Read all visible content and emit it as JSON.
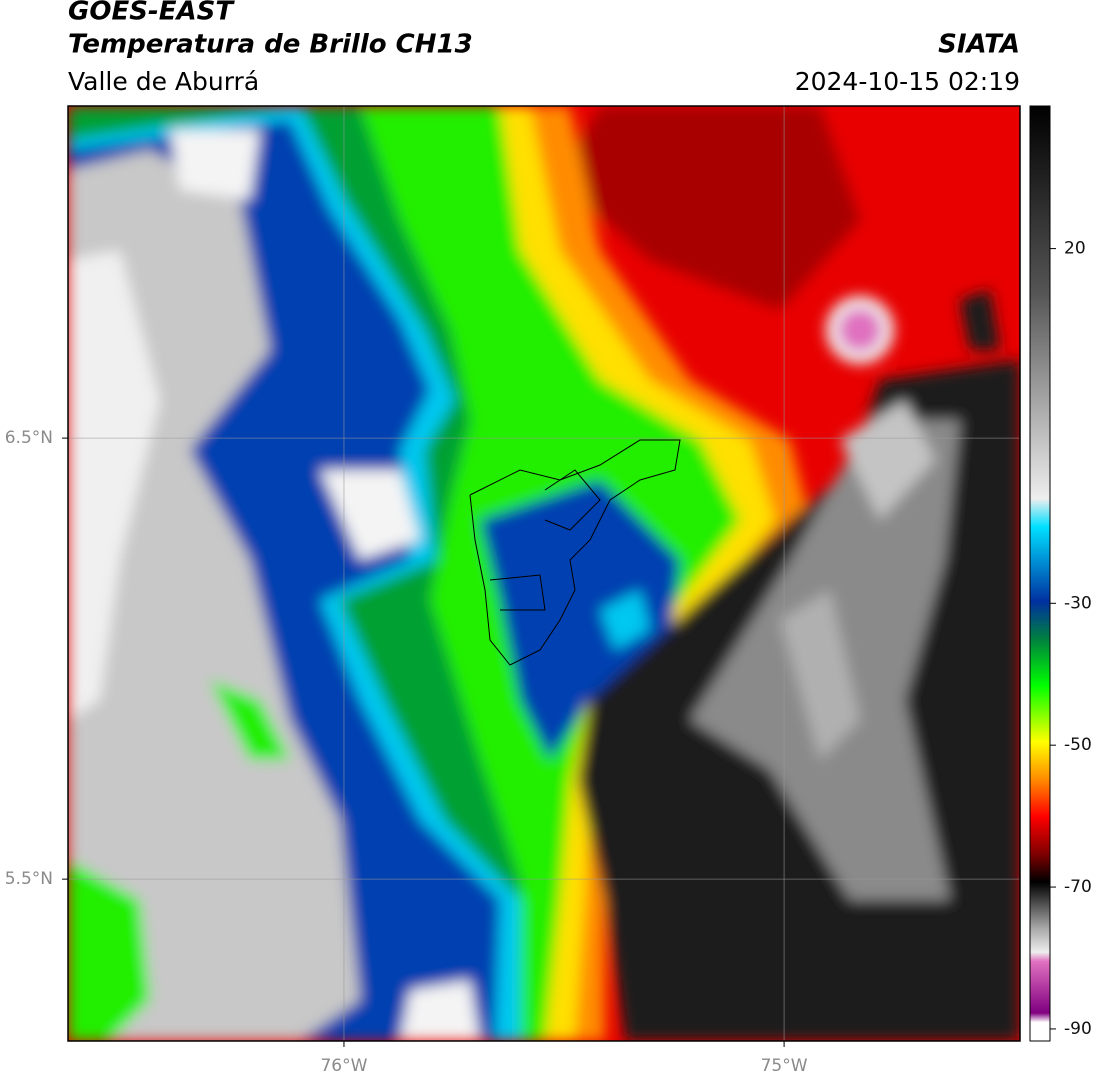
{
  "header": {
    "title": "GOES-EAST",
    "subtitle": "Temperatura de Brillo CH13",
    "source": "SIATA",
    "region": "Valle de Aburrá",
    "timestamp": "2024-10-15 02:19"
  },
  "map": {
    "xlim": [
      -76.627,
      -74.464
    ],
    "ylim": [
      5.133,
      7.253
    ],
    "xticks": [
      {
        "value": -76,
        "label": "76°W"
      },
      {
        "value": -75,
        "label": "75°W"
      }
    ],
    "yticks": [
      {
        "value": 6.5,
        "label": "6.5°N"
      },
      {
        "value": 5.5,
        "label": "5.5°N"
      }
    ],
    "grid": true
  },
  "colorbar": {
    "lim": [
      -91.7,
      40.1
    ],
    "ticks": [
      20,
      -30,
      -50,
      -70,
      -90
    ]
  }
}
